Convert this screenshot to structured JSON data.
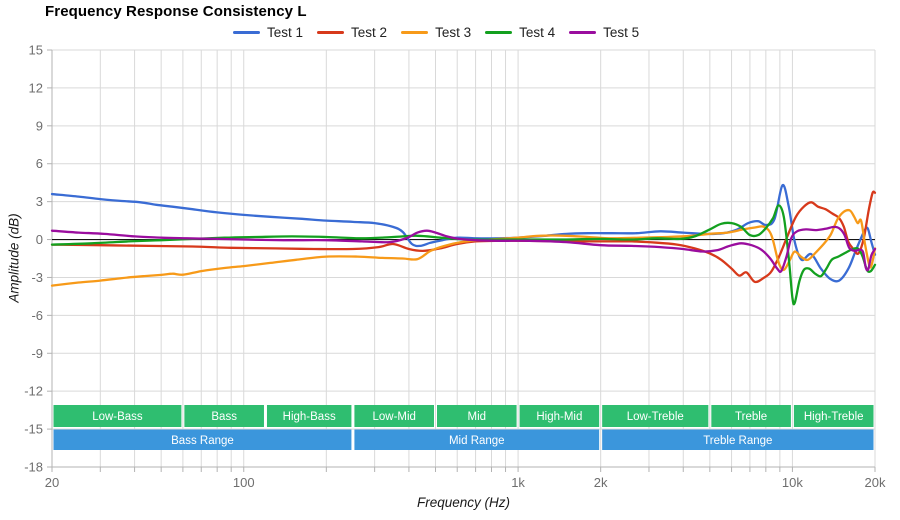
{
  "title": "Frequency Response Consistency L",
  "axes": {
    "x": {
      "label": "Frequency (Hz)",
      "scale": "log",
      "min": 20,
      "max": 20000,
      "tick_labels": [
        {
          "value": 20,
          "text": "20"
        },
        {
          "value": 100,
          "text": "100"
        },
        {
          "value": 1000,
          "text": "1k"
        },
        {
          "value": 2000,
          "text": "2k"
        },
        {
          "value": 10000,
          "text": "10k"
        },
        {
          "value": 20000,
          "text": "20k"
        }
      ],
      "gridlines": [
        20,
        30,
        40,
        50,
        60,
        70,
        80,
        90,
        100,
        200,
        300,
        400,
        500,
        600,
        700,
        800,
        900,
        1000,
        2000,
        3000,
        4000,
        5000,
        6000,
        7000,
        8000,
        9000,
        10000,
        20000
      ]
    },
    "y": {
      "label": "Amplitude (dB)",
      "min": -18,
      "max": 15,
      "step": 3,
      "tick_labels": [
        "15",
        "12",
        "9",
        "6",
        "3",
        "0",
        "-3",
        "-6",
        "-9",
        "-12",
        "-15",
        "-18"
      ],
      "zero_line": 0
    }
  },
  "bands": {
    "sub_color": "#2fbe70",
    "range_color": "#3b96dc",
    "text_color": "#ffffff",
    "sub": [
      {
        "label": "Low-Bass",
        "from": 20,
        "to": 60
      },
      {
        "label": "Bass",
        "from": 60,
        "to": 120
      },
      {
        "label": "High-Bass",
        "from": 120,
        "to": 250
      },
      {
        "label": "Low-Mid",
        "from": 250,
        "to": 500
      },
      {
        "label": "Mid",
        "from": 500,
        "to": 1000
      },
      {
        "label": "High-Mid",
        "from": 1000,
        "to": 2000
      },
      {
        "label": "Low-Treble",
        "from": 2000,
        "to": 5000
      },
      {
        "label": "Treble",
        "from": 5000,
        "to": 10000
      },
      {
        "label": "High-Treble",
        "from": 10000,
        "to": 20000
      }
    ],
    "ranges": [
      {
        "label": "Bass Range",
        "from": 20,
        "to": 250
      },
      {
        "label": "Mid Range",
        "from": 250,
        "to": 2000
      },
      {
        "label": "Treble Range",
        "from": 2000,
        "to": 20000
      }
    ]
  },
  "colors": {
    "grid": "#d9d9d9",
    "axis": "#b3b3b3",
    "zero_line": "#141414",
    "tick_text": "#6e6e6e",
    "title_text": "#000000"
  },
  "chart_data": {
    "type": "line",
    "title": "Frequency Response Consistency L",
    "xlabel": "Frequency (Hz)",
    "ylabel": "Amplitude (dB)",
    "x_scale": "log",
    "xlim": [
      20,
      20000
    ],
    "ylim": [
      -18,
      15
    ],
    "grid": true,
    "legend_position": "top",
    "series": [
      {
        "name": "Test 1",
        "color": "#3a6cd4",
        "points": [
          [
            20,
            3.6
          ],
          [
            25,
            3.4
          ],
          [
            30,
            3.2
          ],
          [
            36,
            3.05
          ],
          [
            42,
            2.95
          ],
          [
            48,
            2.75
          ],
          [
            55,
            2.6
          ],
          [
            65,
            2.4
          ],
          [
            80,
            2.15
          ],
          [
            100,
            1.95
          ],
          [
            125,
            1.8
          ],
          [
            160,
            1.65
          ],
          [
            200,
            1.5
          ],
          [
            250,
            1.4
          ],
          [
            300,
            1.3
          ],
          [
            350,
            1.0
          ],
          [
            380,
            0.6
          ],
          [
            410,
            -0.35
          ],
          [
            440,
            -0.5
          ],
          [
            480,
            -0.25
          ],
          [
            530,
            -0.05
          ],
          [
            600,
            0.15
          ],
          [
            700,
            0.1
          ],
          [
            850,
            0.1
          ],
          [
            1000,
            0.15
          ],
          [
            1250,
            0.3
          ],
          [
            1500,
            0.45
          ],
          [
            1800,
            0.5
          ],
          [
            2200,
            0.5
          ],
          [
            2700,
            0.5
          ],
          [
            3300,
            0.65
          ],
          [
            4000,
            0.55
          ],
          [
            4800,
            0.45
          ],
          [
            5600,
            0.5
          ],
          [
            6300,
            0.8
          ],
          [
            6900,
            1.3
          ],
          [
            7500,
            1.45
          ],
          [
            8000,
            1.15
          ],
          [
            8600,
            1.6
          ],
          [
            9200,
            4.3
          ],
          [
            9700,
            2.6
          ],
          [
            10200,
            -0.2
          ],
          [
            10800,
            -1.6
          ],
          [
            11700,
            -1.15
          ],
          [
            12700,
            -2.3
          ],
          [
            13700,
            -3.1
          ],
          [
            14800,
            -3.25
          ],
          [
            16000,
            -2.3
          ],
          [
            17000,
            -0.9
          ],
          [
            18200,
            0.6
          ],
          [
            18800,
            0.9
          ],
          [
            19400,
            -0.2
          ],
          [
            20000,
            -1.2
          ]
        ]
      },
      {
        "name": "Test 2",
        "color": "#d7391b",
        "points": [
          [
            20,
            -0.4
          ],
          [
            30,
            -0.45
          ],
          [
            45,
            -0.5
          ],
          [
            65,
            -0.55
          ],
          [
            90,
            -0.65
          ],
          [
            130,
            -0.7
          ],
          [
            180,
            -0.75
          ],
          [
            250,
            -0.75
          ],
          [
            310,
            -0.6
          ],
          [
            350,
            -0.35
          ],
          [
            400,
            -0.75
          ],
          [
            450,
            -0.9
          ],
          [
            520,
            -0.7
          ],
          [
            600,
            -0.35
          ],
          [
            700,
            -0.15
          ],
          [
            850,
            -0.1
          ],
          [
            1100,
            -0.1
          ],
          [
            1500,
            -0.15
          ],
          [
            2000,
            -0.15
          ],
          [
            2600,
            -0.15
          ],
          [
            3200,
            -0.25
          ],
          [
            3800,
            -0.4
          ],
          [
            4400,
            -0.7
          ],
          [
            5000,
            -1.1
          ],
          [
            5500,
            -1.6
          ],
          [
            6000,
            -2.3
          ],
          [
            6400,
            -2.85
          ],
          [
            6800,
            -2.6
          ],
          [
            7300,
            -3.35
          ],
          [
            7900,
            -3.0
          ],
          [
            8400,
            -2.5
          ],
          [
            9000,
            -1.2
          ],
          [
            9600,
            0.3
          ],
          [
            10300,
            1.8
          ],
          [
            11000,
            2.6
          ],
          [
            11700,
            2.95
          ],
          [
            12400,
            2.6
          ],
          [
            13200,
            2.4
          ],
          [
            14000,
            2.05
          ],
          [
            14800,
            1.7
          ],
          [
            15400,
            1.0
          ],
          [
            16000,
            -0.2
          ],
          [
            16700,
            -0.75
          ],
          [
            17400,
            -1.1
          ],
          [
            18200,
            0.1
          ],
          [
            19000,
            2.4
          ],
          [
            19600,
            3.7
          ],
          [
            20000,
            3.7
          ]
        ]
      },
      {
        "name": "Test 3",
        "color": "#f79a19",
        "points": [
          [
            20,
            -3.65
          ],
          [
            25,
            -3.4
          ],
          [
            30,
            -3.25
          ],
          [
            36,
            -3.05
          ],
          [
            43,
            -2.9
          ],
          [
            50,
            -2.8
          ],
          [
            55,
            -2.7
          ],
          [
            60,
            -2.78
          ],
          [
            70,
            -2.5
          ],
          [
            85,
            -2.25
          ],
          [
            100,
            -2.1
          ],
          [
            125,
            -1.85
          ],
          [
            155,
            -1.6
          ],
          [
            200,
            -1.35
          ],
          [
            260,
            -1.35
          ],
          [
            320,
            -1.45
          ],
          [
            380,
            -1.5
          ],
          [
            430,
            -1.55
          ],
          [
            480,
            -0.9
          ],
          [
            540,
            -0.5
          ],
          [
            620,
            -0.2
          ],
          [
            720,
            -0.05
          ],
          [
            850,
            0.05
          ],
          [
            1000,
            0.15
          ],
          [
            1200,
            0.3
          ],
          [
            1500,
            0.3
          ],
          [
            1800,
            0.2
          ],
          [
            2200,
            0.1
          ],
          [
            2800,
            0.15
          ],
          [
            3500,
            0.2
          ],
          [
            4300,
            0.3
          ],
          [
            5000,
            0.45
          ],
          [
            5800,
            0.55
          ],
          [
            6600,
            0.8
          ],
          [
            7300,
            0.95
          ],
          [
            7900,
            1.0
          ],
          [
            8400,
            0.3
          ],
          [
            8900,
            -1.8
          ],
          [
            9300,
            -2.4
          ],
          [
            9800,
            -1.6
          ],
          [
            10200,
            -0.95
          ],
          [
            10800,
            -1.4
          ],
          [
            11400,
            -1.6
          ],
          [
            12200,
            -1.0
          ],
          [
            13000,
            -0.35
          ],
          [
            13800,
            0.4
          ],
          [
            14600,
            1.6
          ],
          [
            15400,
            2.2
          ],
          [
            16200,
            2.3
          ],
          [
            16800,
            1.8
          ],
          [
            17300,
            1.3
          ],
          [
            17800,
            1.5
          ],
          [
            18400,
            -0.4
          ],
          [
            19100,
            -2.1
          ],
          [
            19500,
            -1.9
          ],
          [
            20000,
            -0.7
          ]
        ]
      },
      {
        "name": "Test 4",
        "color": "#13a01f",
        "points": [
          [
            20,
            -0.4
          ],
          [
            28,
            -0.3
          ],
          [
            38,
            -0.15
          ],
          [
            50,
            -0.05
          ],
          [
            65,
            0.05
          ],
          [
            85,
            0.15
          ],
          [
            110,
            0.2
          ],
          [
            150,
            0.25
          ],
          [
            200,
            0.2
          ],
          [
            270,
            0.1
          ],
          [
            350,
            0.2
          ],
          [
            430,
            0.3
          ],
          [
            520,
            0.15
          ],
          [
            650,
            0.0
          ],
          [
            850,
            0.0
          ],
          [
            1100,
            0.0
          ],
          [
            1500,
            0.0
          ],
          [
            2000,
            0.05
          ],
          [
            2600,
            0.0
          ],
          [
            3200,
            0.1
          ],
          [
            3900,
            0.05
          ],
          [
            4400,
            0.25
          ],
          [
            5000,
            0.8
          ],
          [
            5500,
            1.25
          ],
          [
            6000,
            1.3
          ],
          [
            6500,
            1.0
          ],
          [
            7000,
            0.35
          ],
          [
            7500,
            0.35
          ],
          [
            8000,
            0.9
          ],
          [
            8500,
            1.7
          ],
          [
            8900,
            2.7
          ],
          [
            9300,
            1.8
          ],
          [
            9700,
            -1.5
          ],
          [
            10000,
            -4.6
          ],
          [
            10200,
            -5.0
          ],
          [
            10600,
            -3.3
          ],
          [
            11000,
            -2.4
          ],
          [
            11500,
            -2.3
          ],
          [
            12100,
            -2.7
          ],
          [
            12700,
            -2.9
          ],
          [
            13300,
            -2.3
          ],
          [
            13900,
            -1.6
          ],
          [
            14700,
            -1.35
          ],
          [
            15600,
            -1.05
          ],
          [
            16400,
            -0.8
          ],
          [
            17300,
            -0.7
          ],
          [
            18000,
            -1.3
          ],
          [
            18700,
            -2.4
          ],
          [
            19300,
            -2.5
          ],
          [
            20000,
            -2.0
          ]
        ]
      },
      {
        "name": "Test 5",
        "color": "#9a0d9e",
        "points": [
          [
            20,
            0.7
          ],
          [
            25,
            0.55
          ],
          [
            31,
            0.45
          ],
          [
            40,
            0.25
          ],
          [
            50,
            0.15
          ],
          [
            62,
            0.1
          ],
          [
            80,
            0.05
          ],
          [
            100,
            0.0
          ],
          [
            140,
            -0.05
          ],
          [
            200,
            -0.05
          ],
          [
            270,
            -0.15
          ],
          [
            340,
            -0.2
          ],
          [
            390,
            0.1
          ],
          [
            430,
            0.55
          ],
          [
            465,
            0.7
          ],
          [
            500,
            0.55
          ],
          [
            550,
            0.25
          ],
          [
            610,
            0.05
          ],
          [
            700,
            -0.05
          ],
          [
            850,
            -0.1
          ],
          [
            1100,
            -0.1
          ],
          [
            1500,
            -0.2
          ],
          [
            2000,
            -0.45
          ],
          [
            2600,
            -0.5
          ],
          [
            3300,
            -0.6
          ],
          [
            4000,
            -0.75
          ],
          [
            4700,
            -0.95
          ],
          [
            5300,
            -0.85
          ],
          [
            5900,
            -0.5
          ],
          [
            6500,
            -0.3
          ],
          [
            7100,
            -0.45
          ],
          [
            7700,
            -0.8
          ],
          [
            8300,
            -1.5
          ],
          [
            8800,
            -2.3
          ],
          [
            9100,
            -2.5
          ],
          [
            9500,
            -1.4
          ],
          [
            9900,
            0.1
          ],
          [
            10400,
            0.65
          ],
          [
            11200,
            0.8
          ],
          [
            12200,
            0.75
          ],
          [
            13200,
            0.85
          ],
          [
            14200,
            1.0
          ],
          [
            14900,
            0.85
          ],
          [
            15500,
            0.35
          ],
          [
            16100,
            -0.65
          ],
          [
            16900,
            -0.9
          ],
          [
            17600,
            -0.8
          ],
          [
            18100,
            -1.0
          ],
          [
            18500,
            -2.2
          ],
          [
            18900,
            -2.35
          ],
          [
            19400,
            -1.25
          ],
          [
            20000,
            -0.75
          ]
        ]
      }
    ]
  }
}
